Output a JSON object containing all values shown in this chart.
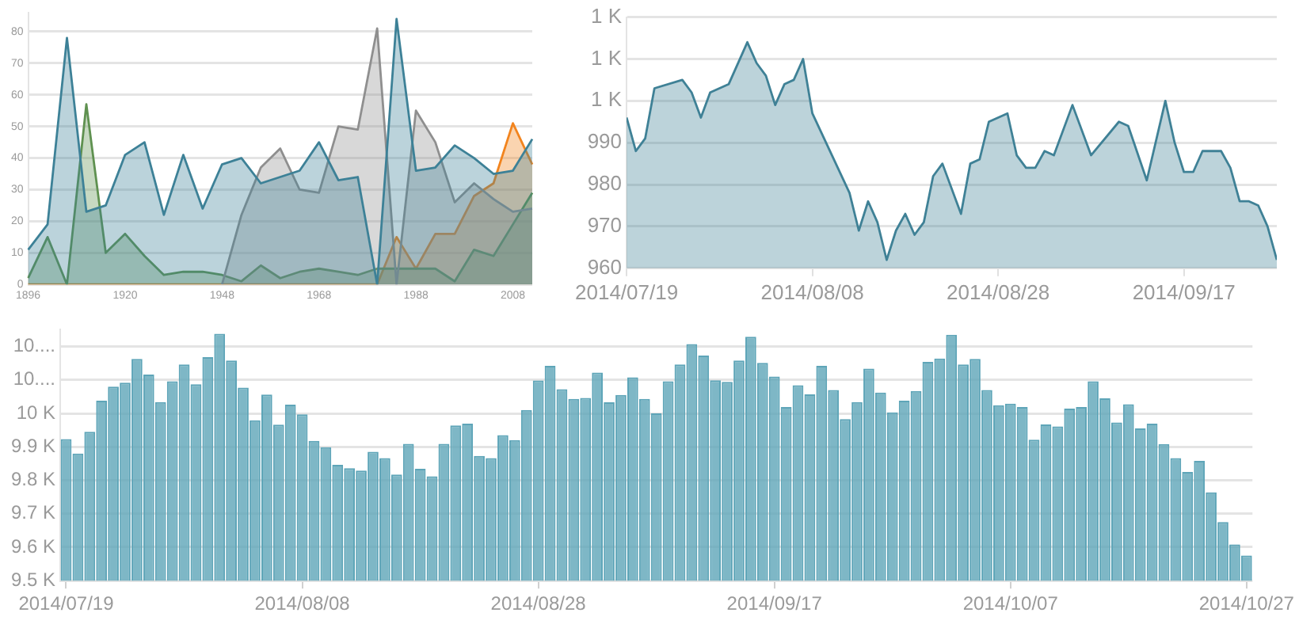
{
  "chart_data": [
    {
      "type": "area",
      "categories": [
        "1896",
        null,
        null,
        null,
        null,
        "1920",
        null,
        null,
        null,
        null,
        "1948",
        null,
        null,
        null,
        null,
        "1968",
        null,
        null,
        null,
        null,
        "1988",
        null,
        null,
        null,
        null,
        "2008",
        null
      ],
      "series": [
        {
          "color": "#3d8197",
          "values": [
            11,
            19,
            78,
            23,
            25,
            41,
            45,
            22,
            41,
            24,
            38,
            40,
            32,
            34,
            36,
            45,
            33,
            34,
            0,
            84,
            36,
            37,
            44,
            40,
            35,
            36,
            46
          ]
        },
        {
          "color": "#8f8f8f",
          "values": [
            null,
            null,
            null,
            null,
            null,
            null,
            null,
            null,
            null,
            null,
            0,
            22,
            37,
            43,
            30,
            29,
            50,
            49,
            81,
            0,
            55,
            45,
            26,
            32,
            27,
            23,
            24
          ]
        },
        {
          "color": "#5f9150",
          "values": [
            2,
            15,
            0,
            57,
            10,
            16,
            9,
            3,
            4,
            4,
            3,
            1,
            6,
            2,
            4,
            5,
            4,
            3,
            5,
            5,
            5,
            5,
            1,
            11,
            9,
            19,
            29
          ]
        },
        {
          "color": "#f2841e",
          "values": [
            0,
            0,
            0,
            0,
            0,
            0,
            0,
            0,
            0,
            0,
            0,
            0,
            0,
            0,
            0,
            0,
            0,
            0,
            0,
            15,
            5,
            16,
            16,
            28,
            32,
            51,
            38
          ]
        }
      ],
      "ylim": [
        0,
        86
      ],
      "yticks": [
        0,
        10,
        20,
        30,
        40,
        50,
        60,
        70,
        80
      ],
      "grid": "y",
      "marker": "none"
    },
    {
      "type": "area",
      "x": [
        "2014-07-19",
        "2014-07-20",
        "2014-07-21",
        "2014-07-22",
        "2014-07-25",
        "2014-07-26",
        "2014-07-27",
        "2014-07-28",
        "2014-07-30",
        "2014-08-01",
        "2014-08-02",
        "2014-08-03",
        "2014-08-04",
        "2014-08-05",
        "2014-08-06",
        "2014-08-07",
        "2014-08-08",
        "2014-08-12",
        "2014-08-13",
        "2014-08-14",
        "2014-08-15",
        "2014-08-16",
        "2014-08-17",
        "2014-08-18",
        "2014-08-19",
        "2014-08-20",
        "2014-08-21",
        "2014-08-22",
        "2014-08-24",
        "2014-08-25",
        "2014-08-26",
        "2014-08-27",
        "2014-08-29",
        "2014-08-30",
        "2014-08-31",
        "2014-09-01",
        "2014-09-02",
        "2014-09-03",
        "2014-09-05",
        "2014-09-07",
        "2014-09-10",
        "2014-09-11",
        "2014-09-13",
        "2014-09-15",
        "2014-09-16",
        "2014-09-17",
        "2014-09-18",
        "2014-09-19",
        "2014-09-21",
        "2014-09-22",
        "2014-09-23",
        "2014-09-24",
        "2014-09-25",
        "2014-09-26",
        "2014-09-27"
      ],
      "series": [
        {
          "color": "#3f8196",
          "values": [
            996,
            988,
            991,
            1003,
            1005,
            1002,
            996,
            1002,
            1004,
            1014,
            1009,
            1006,
            999,
            1004,
            1005,
            1010,
            997,
            978,
            969,
            976,
            971,
            962,
            969,
            973,
            968,
            971,
            982,
            985,
            973,
            985,
            986,
            995,
            997,
            987,
            984,
            984,
            988,
            987,
            999,
            987,
            995,
            994,
            981,
            1000,
            990,
            983,
            983,
            988,
            988,
            984,
            976,
            976,
            975,
            970,
            962
          ]
        }
      ],
      "xlim": [
        "2014-07-19",
        "2014-09-27"
      ],
      "xticks": [
        {
          "value": "2014-07-19",
          "label": "2014/07/19"
        },
        {
          "value": "2014-08-08",
          "label": "2014/08/08"
        },
        {
          "value": "2014-08-28",
          "label": "2014/08/28"
        },
        {
          "value": "2014-09-17",
          "label": "2014/09/17"
        }
      ],
      "ylim": [
        960,
        1020
      ],
      "yticks": [
        960,
        970,
        980,
        990,
        {
          "value": 1000,
          "label": "1 K"
        },
        {
          "value": 1010,
          "label": "1 K"
        },
        {
          "value": 1020,
          "label": "1 K"
        }
      ],
      "grid": "y",
      "marker": "none"
    },
    {
      "type": "bar",
      "categories": [
        "2014/07/19",
        null,
        null,
        null,
        null,
        null,
        null,
        null,
        null,
        null,
        null,
        null,
        null,
        null,
        null,
        null,
        null,
        null,
        null,
        null,
        "2014/08/08",
        null,
        null,
        null,
        null,
        null,
        null,
        null,
        null,
        null,
        null,
        null,
        null,
        null,
        null,
        null,
        null,
        null,
        null,
        null,
        "2014/08/28",
        null,
        null,
        null,
        null,
        null,
        null,
        null,
        null,
        null,
        null,
        null,
        null,
        null,
        null,
        null,
        null,
        null,
        null,
        null,
        "2014/09/17",
        null,
        null,
        null,
        null,
        null,
        null,
        null,
        null,
        null,
        null,
        null,
        null,
        null,
        null,
        null,
        null,
        null,
        null,
        null,
        "2014/10/07",
        null,
        null,
        null,
        null,
        null,
        null,
        null,
        null,
        null,
        null,
        null,
        null,
        null,
        null,
        null,
        null,
        null,
        null,
        null,
        "2014/10/27"
      ],
      "series": [
        {
          "color": "#5ea5b8",
          "values": [
            9923,
            9880,
            9945,
            10038,
            10080,
            10092,
            10163,
            10116,
            10034,
            10096,
            10146,
            10087,
            10168,
            10238,
            10158,
            10077,
            9979,
            10056,
            9966,
            10026,
            9997,
            9918,
            9899,
            9846,
            9836,
            9829,
            9885,
            9866,
            9817,
            9909,
            9834,
            9812,
            9909,
            9964,
            9969,
            9873,
            9866,
            9935,
            9920,
            10010,
            10098,
            10142,
            10072,
            10043,
            10046,
            10122,
            10033,
            10055,
            10108,
            10043,
            10000,
            10096,
            10146,
            10207,
            10173,
            10099,
            10094,
            10158,
            10229,
            10151,
            10110,
            10019,
            10084,
            10057,
            10142,
            10070,
            9983,
            10034,
            10134,
            10062,
            10003,
            10038,
            10067,
            10154,
            10164,
            10235,
            10146,
            10163,
            10070,
            10024,
            10029,
            10019,
            9921,
            9967,
            9961,
            10014,
            10019,
            10096,
            10045,
            9973,
            10027,
            9955,
            9969,
            9908,
            9866,
            9825,
            9858,
            9764,
            9675,
            9608,
            9575
          ]
        }
      ],
      "ylim": [
        9500,
        10250
      ],
      "yticks": [
        {
          "value": 9500,
          "label": "9.5 K"
        },
        {
          "value": 9600,
          "label": "9.6 K"
        },
        {
          "value": 9700,
          "label": "9.7 K"
        },
        {
          "value": 9800,
          "label": "9.8 K"
        },
        {
          "value": 9900,
          "label": "9.9 K"
        },
        {
          "value": 10000,
          "label": "10 K"
        },
        {
          "value": 10100,
          "label": "10...."
        },
        {
          "value": 10200,
          "label": "10...."
        }
      ],
      "grid": "y"
    }
  ]
}
